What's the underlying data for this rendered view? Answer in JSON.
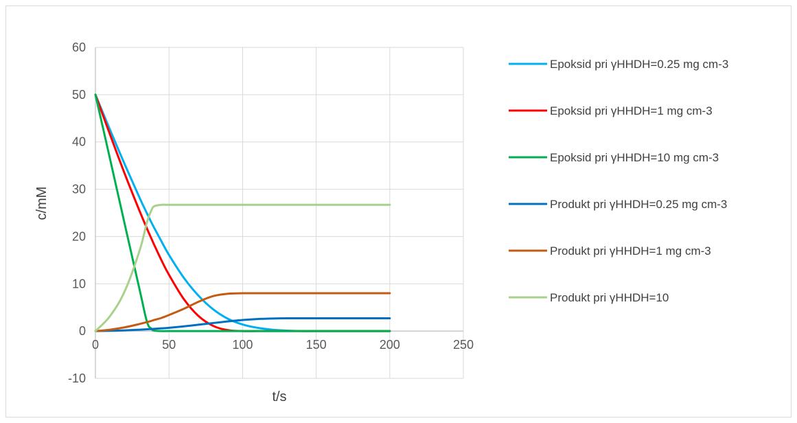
{
  "chart_data": {
    "type": "line",
    "title": "",
    "xlabel": "t/s",
    "ylabel": "c/mM",
    "xlim": [
      0,
      250
    ],
    "ylim": [
      -10,
      60
    ],
    "x_ticks": [
      0,
      50,
      100,
      150,
      200,
      250
    ],
    "y_ticks": [
      -10,
      0,
      10,
      20,
      30,
      40,
      50,
      60
    ],
    "grid": true,
    "legend_position": "right",
    "x": [
      0,
      10,
      20,
      30,
      35,
      38,
      40,
      45,
      50,
      60,
      70,
      80,
      90,
      100,
      110,
      120,
      130,
      140,
      150,
      160,
      170,
      180,
      190,
      200
    ],
    "series": [
      {
        "name": "Epoksid pri γHHDH=0.25 mg cm-3",
        "color": "#00b0f0",
        "values": [
          50,
          42.5,
          35.2,
          28.2,
          24.9,
          23.0,
          21.8,
          18.9,
          16.1,
          11.3,
          7.5,
          4.6,
          2.6,
          1.4,
          0.7,
          0.3,
          0.1,
          0,
          0,
          0,
          0,
          0,
          0,
          0
        ]
      },
      {
        "name": "Epoksid pri γHHDH=1 mg cm-3",
        "color": "#ff0000",
        "values": [
          50,
          41.5,
          33.2,
          25.4,
          21.7,
          19.6,
          18.2,
          14.9,
          11.9,
          6.8,
          3.2,
          1.1,
          0.2,
          0,
          0,
          0,
          0,
          0,
          0,
          0,
          0,
          0,
          0,
          0
        ]
      },
      {
        "name": "Epoksid pri γHHDH=10 mg cm-3",
        "color": "#00b050",
        "values": [
          50,
          36.3,
          22.5,
          8.8,
          2.0,
          0.5,
          0.1,
          0,
          0,
          0,
          0,
          0,
          0,
          0,
          0,
          0,
          0,
          0,
          0,
          0,
          0,
          0,
          0,
          0
        ]
      },
      {
        "name": "Produkt pri γHHDH=0.25 mg cm-3",
        "color": "#0070c0",
        "values": [
          0,
          0.05,
          0.15,
          0.3,
          0.38,
          0.43,
          0.47,
          0.58,
          0.7,
          1.0,
          1.35,
          1.7,
          2.05,
          2.35,
          2.55,
          2.65,
          2.7,
          2.7,
          2.7,
          2.7,
          2.7,
          2.7,
          2.7,
          2.7
        ]
      },
      {
        "name": "Produkt pri γHHDH=1 mg cm-3",
        "color": "#c55a11",
        "values": [
          0,
          0.3,
          0.8,
          1.5,
          1.9,
          2.15,
          2.35,
          2.8,
          3.4,
          4.7,
          6.2,
          7.4,
          7.9,
          8.0,
          8.0,
          8.0,
          8.0,
          8.0,
          8.0,
          8.0,
          8.0,
          8.0,
          8.0,
          8.0
        ]
      },
      {
        "name": "Produkt pri γHHDH=10",
        "color": "#a9d18e",
        "values": [
          0,
          3.2,
          8.5,
          17.0,
          23.0,
          25.5,
          26.4,
          26.7,
          26.7,
          26.7,
          26.7,
          26.7,
          26.7,
          26.7,
          26.7,
          26.7,
          26.7,
          26.7,
          26.7,
          26.7,
          26.7,
          26.7,
          26.7,
          26.7
        ]
      }
    ]
  },
  "colors": {
    "grid": "#d9d9d9",
    "axis": "#bfbfbf",
    "frame": "#d9d9d9"
  }
}
